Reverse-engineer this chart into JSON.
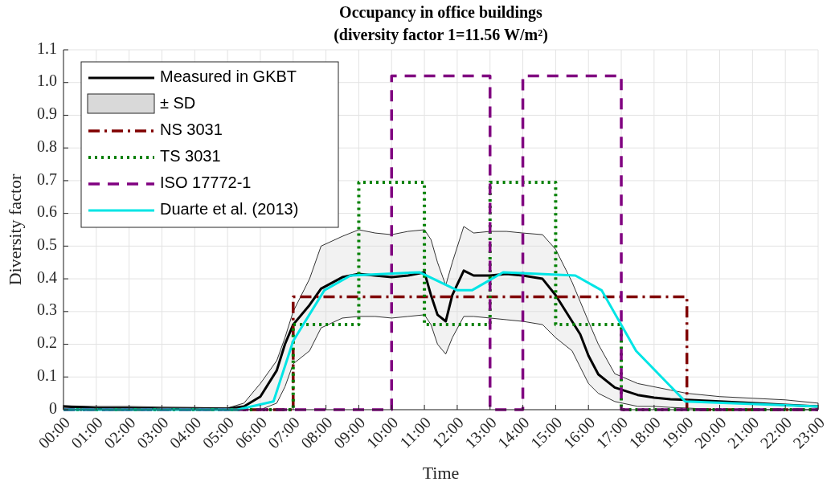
{
  "chart_data": {
    "type": "line",
    "title": "Occupancy in office buildings",
    "subtitle": "(diversity factor 1=11.56 W/m²)",
    "xlabel": "Time",
    "ylabel": "Diversity factor",
    "xlim": [
      0,
      23
    ],
    "ylim": [
      0,
      1.1
    ],
    "xticks": [
      {
        "value": 0,
        "label": "00:00"
      },
      {
        "value": 1,
        "label": "01:00"
      },
      {
        "value": 2,
        "label": "02:00"
      },
      {
        "value": 3,
        "label": "03:00"
      },
      {
        "value": 4,
        "label": "04:00"
      },
      {
        "value": 5,
        "label": "05:00"
      },
      {
        "value": 6,
        "label": "06:00"
      },
      {
        "value": 7,
        "label": "07:00"
      },
      {
        "value": 8,
        "label": "08:00"
      },
      {
        "value": 9,
        "label": "09:00"
      },
      {
        "value": 10,
        "label": "10:00"
      },
      {
        "value": 11,
        "label": "11:00"
      },
      {
        "value": 12,
        "label": "12:00"
      },
      {
        "value": 13,
        "label": "13:00"
      },
      {
        "value": 14,
        "label": "14:00"
      },
      {
        "value": 15,
        "label": "15:00"
      },
      {
        "value": 16,
        "label": "16:00"
      },
      {
        "value": 17,
        "label": "17:00"
      },
      {
        "value": 18,
        "label": "18:00"
      },
      {
        "value": 19,
        "label": "19:00"
      },
      {
        "value": 20,
        "label": "20:00"
      },
      {
        "value": 21,
        "label": "21:00"
      },
      {
        "value": 22,
        "label": "22:00"
      },
      {
        "value": 23,
        "label": "23:00"
      }
    ],
    "yticks": [
      0,
      0.1,
      0.2,
      0.3,
      0.4,
      0.5,
      0.6,
      0.7,
      0.8,
      0.9,
      {
        "value": 1,
        "label": "1.0"
      },
      1.1
    ],
    "grid": true,
    "legend": "top left",
    "series": [
      {
        "name": "Measured in GKBT",
        "color": "#000000",
        "line_style": "solid",
        "x": [
          0,
          1,
          2,
          3,
          4,
          5,
          5.5,
          6,
          6.5,
          6.75,
          7,
          7.5,
          7.85,
          8.5,
          9,
          9.5,
          10,
          10.5,
          11,
          11.2,
          11.4,
          11.65,
          11.85,
          12.2,
          12.5,
          13,
          13.5,
          14,
          14.6,
          15,
          15.5,
          15.75,
          16,
          16.3,
          16.8,
          17.5,
          18,
          18.5,
          19,
          20,
          21,
          22,
          23
        ],
        "values": [
          0.01,
          0.005,
          0.005,
          0.003,
          0.003,
          0.003,
          0.01,
          0.04,
          0.12,
          0.2,
          0.26,
          0.32,
          0.37,
          0.405,
          0.415,
          0.41,
          0.405,
          0.41,
          0.42,
          0.35,
          0.29,
          0.27,
          0.35,
          0.425,
          0.41,
          0.41,
          0.415,
          0.41,
          0.4,
          0.35,
          0.27,
          0.23,
          0.165,
          0.108,
          0.068,
          0.045,
          0.037,
          0.032,
          0.03,
          0.025,
          0.02,
          0.015,
          0.01
        ],
        "upper": [
          0.012,
          0.01,
          0.01,
          0.008,
          0.007,
          0.005,
          0.02,
          0.08,
          0.15,
          0.22,
          0.3,
          0.4,
          0.5,
          0.53,
          0.55,
          0.54,
          0.535,
          0.545,
          0.55,
          0.52,
          0.45,
          0.38,
          0.45,
          0.56,
          0.54,
          0.545,
          0.545,
          0.54,
          0.535,
          0.49,
          0.39,
          0.33,
          0.27,
          0.2,
          0.11,
          0.08,
          0.07,
          0.06,
          0.05,
          0.04,
          0.035,
          0.03,
          0.02
        ],
        "lower": [
          0,
          0,
          0,
          0,
          0,
          0,
          0,
          0,
          0.02,
          0.07,
          0.14,
          0.18,
          0.25,
          0.28,
          0.285,
          0.285,
          0.28,
          0.285,
          0.29,
          0.26,
          0.2,
          0.17,
          0.22,
          0.285,
          0.285,
          0.28,
          0.275,
          0.27,
          0.26,
          0.22,
          0.18,
          0.13,
          0.08,
          0.05,
          0.025,
          0.01,
          0.01,
          0.007,
          0.005,
          0,
          0,
          0,
          0
        ]
      },
      {
        "name": "± SD",
        "type": "area",
        "color": "#d9d9d9"
      },
      {
        "name": "NS 3031",
        "type": "line",
        "color": "#800000",
        "line_style": "dashdot",
        "x": [
          0,
          7,
          7,
          19,
          19,
          23
        ],
        "values": [
          0,
          0,
          0.345,
          0.345,
          0,
          0
        ]
      },
      {
        "name": "TS 3031",
        "type": "line",
        "color": "#008000",
        "line_style": "dotted",
        "x": [
          0,
          7,
          7,
          9,
          9,
          11,
          11,
          13,
          13,
          15,
          15,
          17,
          17,
          23
        ],
        "values": [
          0,
          0,
          0.26,
          0.26,
          0.695,
          0.695,
          0.26,
          0.26,
          0.695,
          0.695,
          0.26,
          0.26,
          0,
          0
        ]
      },
      {
        "name": "ISO 17772-1",
        "type": "line",
        "color": "#800080",
        "line_style": "dashed",
        "x": [
          0,
          10,
          10,
          13,
          13,
          14,
          14,
          17,
          17,
          23
        ],
        "values": [
          0,
          0,
          1.02,
          1.02,
          0,
          0,
          1.02,
          1.02,
          0,
          0
        ]
      },
      {
        "name": "Duarte et al. (2013)",
        "type": "line",
        "color": "#00e5e5",
        "line_style": "solid",
        "x": [
          0,
          5.3,
          6.4,
          7,
          7.95,
          8.75,
          10.85,
          12,
          12.45,
          13.4,
          15.6,
          16.4,
          17.45,
          18.95,
          23
        ],
        "values": [
          0,
          0,
          0.025,
          0.21,
          0.365,
          0.41,
          0.42,
          0.365,
          0.365,
          0.42,
          0.41,
          0.365,
          0.18,
          0.025,
          0.01
        ]
      }
    ]
  }
}
